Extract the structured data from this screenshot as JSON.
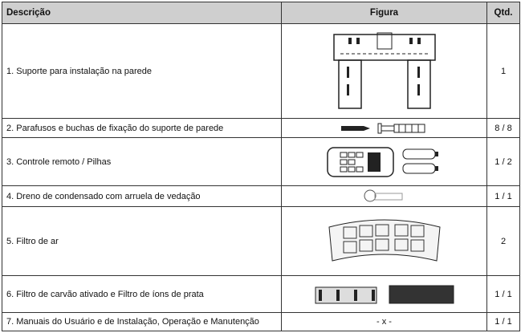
{
  "table": {
    "header": [
      "Descrição",
      "Figura",
      "Qtd."
    ],
    "rows": [
      {
        "description": "1. Suporte para instalação na parede",
        "qty": "1"
      },
      {
        "description": "2. Parafusos e buchas de fixação do suporte de parede",
        "qty": "8 / 8"
      },
      {
        "description": "3. Controle remoto / Pilhas",
        "qty": "1 / 2"
      },
      {
        "description": "4. Dreno de condensado com arruela de vedação",
        "qty": "1 / 1"
      },
      {
        "description": "5.  Filtro de ar",
        "qty": "2"
      },
      {
        "description": "6. Filtro de carvão ativado e Filtro de íons de prata",
        "qty": "1 / 1"
      },
      {
        "description": "7. Manuais do Usuário e de Instalação, Operação e Manutenção",
        "figure": "- x -",
        "qty": "1 / 1"
      }
    ]
  }
}
